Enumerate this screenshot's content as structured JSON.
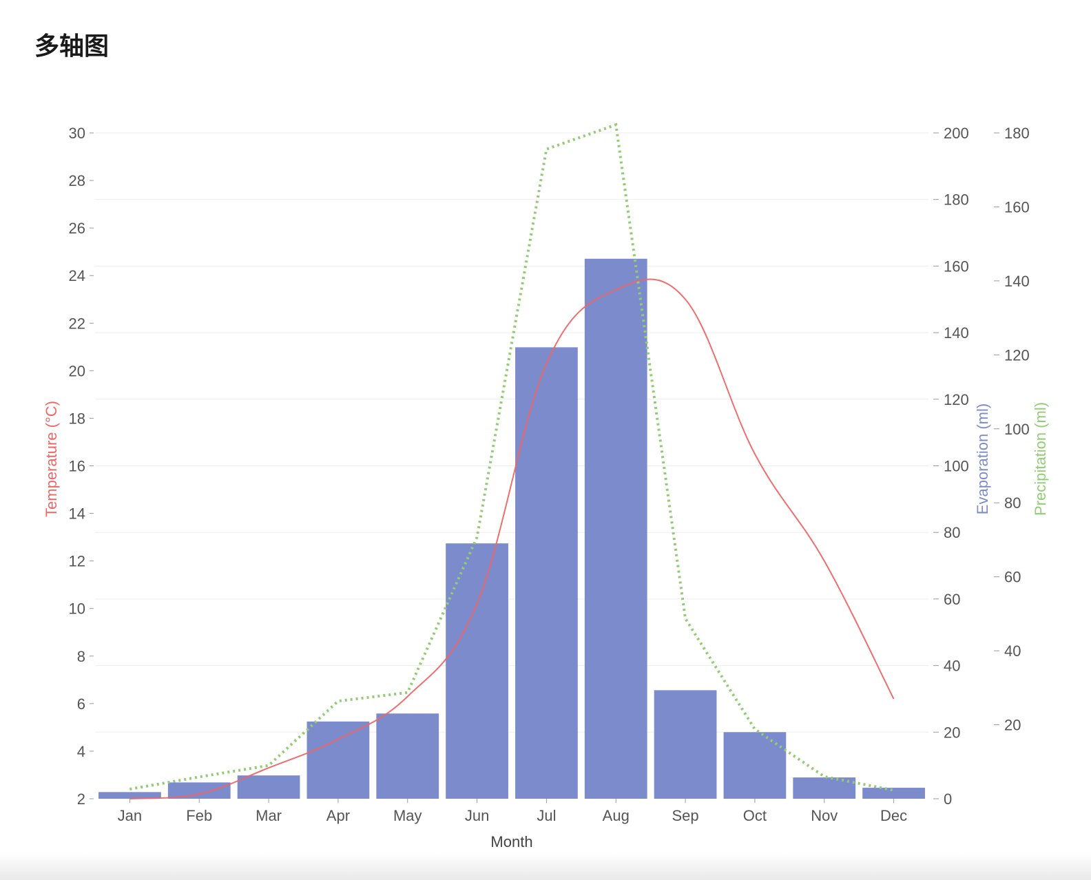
{
  "page": {
    "title": "多轴图"
  },
  "chart_data": {
    "type": "bar",
    "categories": [
      "Jan",
      "Feb",
      "Mar",
      "Apr",
      "May",
      "Jun",
      "Jul",
      "Aug",
      "Sep",
      "Oct",
      "Nov",
      "Dec"
    ],
    "xlabel": "Month",
    "axes": {
      "temperature": {
        "label": "Temperature (°C)",
        "min": 2,
        "max": 30,
        "ticks": [
          2,
          4,
          6,
          8,
          10,
          12,
          14,
          16,
          18,
          20,
          22,
          24,
          26,
          28,
          30
        ],
        "side": "left",
        "color": "#ee6666"
      },
      "evaporation": {
        "label": "Evaporation (ml)",
        "min": 0,
        "max": 200,
        "ticks": [
          0,
          20,
          40,
          60,
          80,
          100,
          120,
          140,
          160,
          180,
          200
        ],
        "side": "right",
        "color": "#7b8bcb"
      },
      "precipitation": {
        "label": "Precipitation (ml)",
        "min": 0,
        "max": 180,
        "ticks": [
          20,
          40,
          60,
          80,
          100,
          120,
          140,
          160,
          180
        ],
        "side": "right-outer",
        "color": "#91cc75"
      }
    },
    "series": [
      {
        "name": "Evaporation",
        "type": "bar",
        "axis": "evaporation",
        "color": "#7b8bcb",
        "values": [
          2.0,
          4.9,
          7.0,
          23.2,
          25.6,
          76.7,
          135.6,
          162.2,
          32.6,
          20.0,
          6.4,
          3.3
        ]
      },
      {
        "name": "Temperature",
        "type": "line",
        "smooth": true,
        "axis": "temperature",
        "color": "#ee6666",
        "values": [
          2.0,
          2.2,
          3.3,
          4.5,
          6.3,
          10.2,
          20.3,
          23.4,
          23.0,
          16.5,
          12.0,
          6.2
        ]
      },
      {
        "name": "Precipitation",
        "type": "line",
        "dotted": true,
        "axis": "precipitation",
        "color": "#91cc75",
        "values": [
          2.6,
          5.9,
          9.0,
          26.4,
          28.7,
          70.7,
          175.6,
          182.2,
          48.7,
          18.8,
          6.0,
          2.3
        ]
      }
    ],
    "grid": true,
    "legend": "none"
  }
}
